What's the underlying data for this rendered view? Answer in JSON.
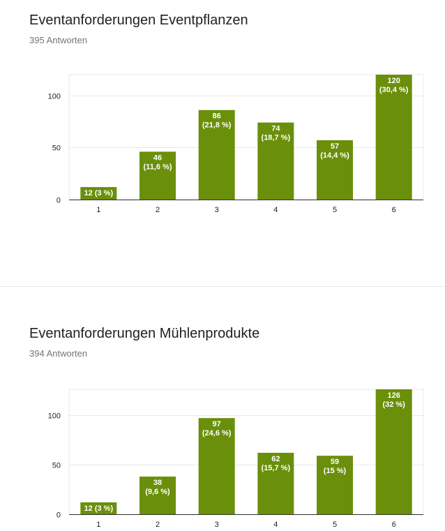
{
  "colors": {
    "bar": "#6a8f0a",
    "grid": "#e8e8e8",
    "axis": "#333333"
  },
  "charts": [
    {
      "title": "Eventanforderungen Eventpflanzen",
      "subtitle": "395 Antworten",
      "chart_data": {
        "type": "bar",
        "categories": [
          "1",
          "2",
          "3",
          "4",
          "5",
          "6"
        ],
        "values": [
          12,
          46,
          86,
          74,
          57,
          120
        ],
        "value_labels": [
          "12 (3 %)",
          "46|(11,6 %)",
          "86|(21,8 %)",
          "74|(18,7 %)",
          "57|(14,4 %)",
          "120|(30,4 %)"
        ],
        "yticks": [
          0,
          50,
          100
        ],
        "ylim": [
          0,
          120
        ],
        "grid": true,
        "legend": "none"
      }
    },
    {
      "title": "Eventanforderungen Mühlenprodukte",
      "subtitle": "394 Antworten",
      "chart_data": {
        "type": "bar",
        "categories": [
          "1",
          "2",
          "3",
          "4",
          "5",
          "6"
        ],
        "values": [
          12,
          38,
          97,
          62,
          59,
          126
        ],
        "value_labels": [
          "12 (3 %)",
          "38|(9,6 %)",
          "97|(24,6 %)",
          "62|(15,7 %)",
          "59|(15 %)",
          "126|(32 %)"
        ],
        "yticks": [
          0,
          50,
          100
        ],
        "ylim": [
          0,
          126
        ],
        "grid": true,
        "legend": "none"
      }
    }
  ]
}
